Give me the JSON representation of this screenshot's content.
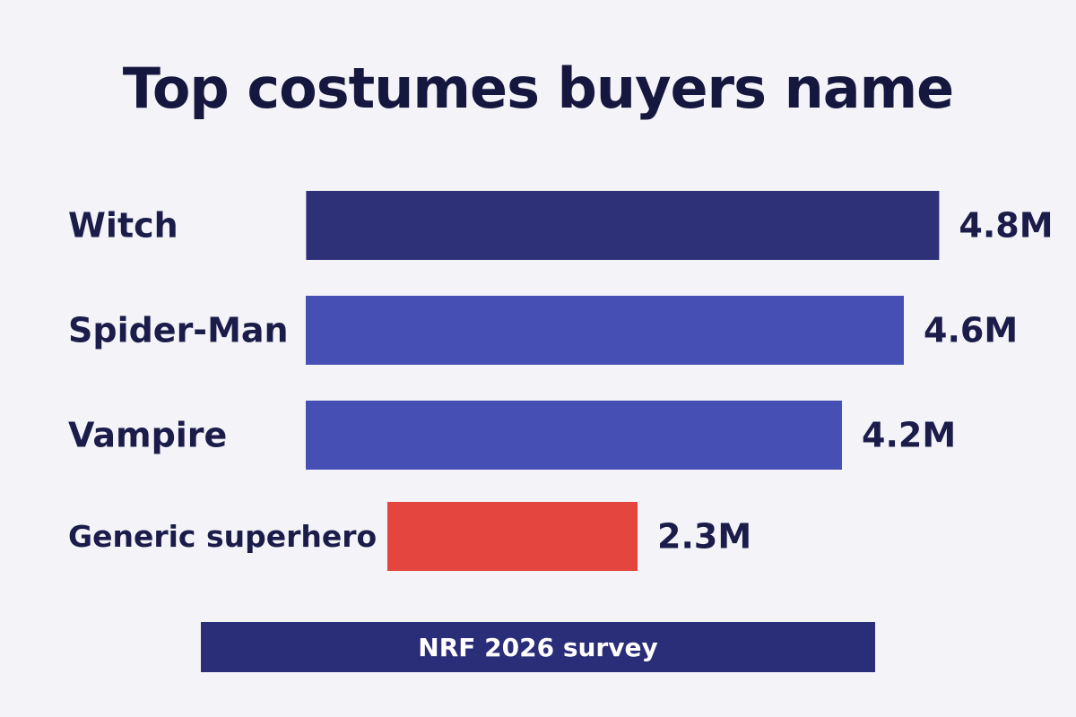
{
  "source_note": "NRF 2026 survey",
  "colors": {
    "background": "#f3f3f8",
    "top_bar": "#2e3078",
    "bar": "#4650b4",
    "highlight_bar": "#e4463f",
    "source_bar": "#2a2d78",
    "text": "#1b1c4a"
  },
  "chart_data": {
    "type": "bar",
    "orientation": "horizontal",
    "title": "Top costumes buyers name",
    "xlabel": "",
    "ylabel": "",
    "grid": false,
    "legend": "none",
    "unit_suffix": "M",
    "categories": [
      "Witch",
      "Spider-Man",
      "Vampire",
      "Generic superhero"
    ],
    "values": [
      4.8,
      4.6,
      4.2,
      2.3
    ],
    "value_labels": [
      "4.8M",
      "4.6M",
      "4.2M",
      "2.3M"
    ],
    "highlight": "Generic superhero"
  }
}
